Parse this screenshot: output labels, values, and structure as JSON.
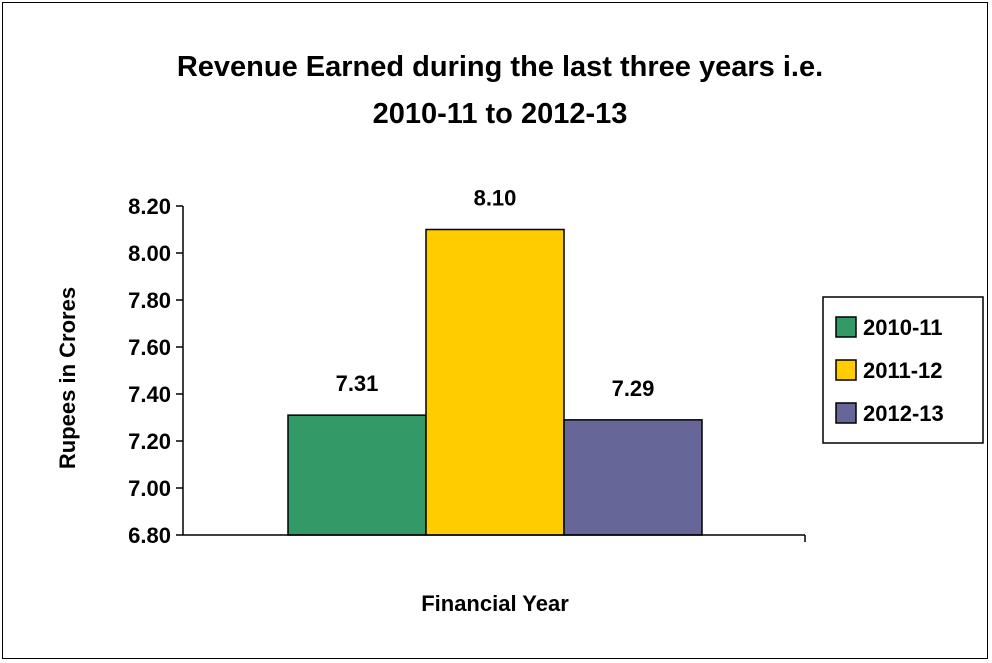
{
  "chart_data": {
    "type": "bar",
    "title_lines": [
      "Revenue Earned during the last three years i.e.",
      "2010-11 to 2012-13"
    ],
    "xlabel": "Financial Year",
    "ylabel": "Rupees in Crores",
    "ylim": [
      6.8,
      8.2
    ],
    "yticks": [
      "6.80",
      "7.00",
      "7.20",
      "7.40",
      "7.60",
      "7.80",
      "8.00",
      "8.20"
    ],
    "series": [
      {
        "name": "2010-11",
        "value": 7.31,
        "label": "7.31",
        "color": "#339966"
      },
      {
        "name": "2011-12",
        "value": 8.1,
        "label": "8.10",
        "color": "#ffcc00"
      },
      {
        "name": "2012-13",
        "value": 7.29,
        "label": "7.29",
        "color": "#666699"
      }
    ],
    "legend_position": "right",
    "grid": false
  }
}
